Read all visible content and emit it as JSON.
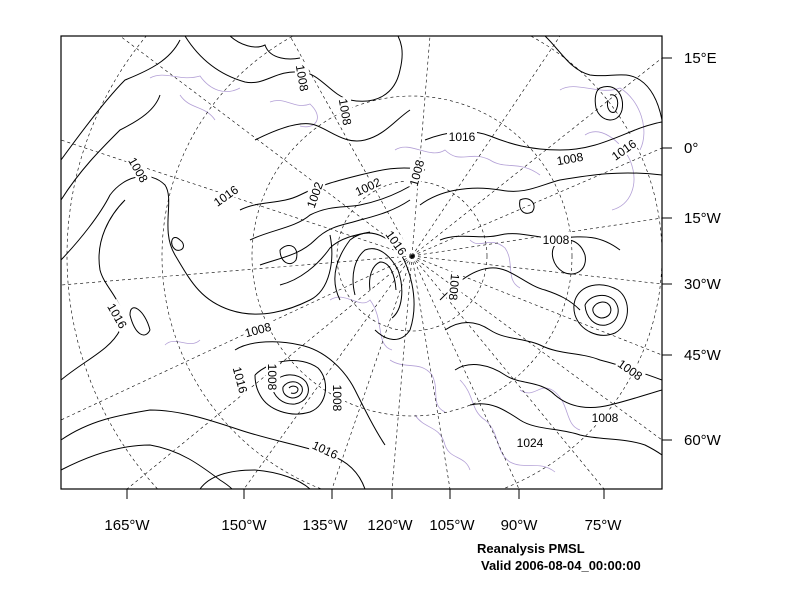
{
  "map": {
    "bottom_axis_labels": [
      "165°W",
      "150°W",
      "135°W",
      "120°W",
      "105°W",
      "90°W",
      "75°W"
    ],
    "right_axis_labels": [
      "15°E",
      "0°",
      "15°W",
      "30°W",
      "45°W",
      "60°W"
    ],
    "contour_labels": [
      "1008",
      "1008",
      "1016",
      "1008",
      "1016",
      "1008",
      "1016",
      "1002",
      "1002",
      "1008",
      "1016",
      "1008",
      "1008",
      "1016",
      "1008",
      "1008",
      "1016",
      "1008",
      "1008",
      "1016",
      "1024",
      "1008",
      "1008"
    ],
    "colors": {
      "contour": "#000000",
      "coastline": "#b3a0d6",
      "graticule": "#000000"
    }
  },
  "caption": {
    "line1": "Reanalysis PMSL",
    "line2": "Valid 2006-08-04_00:00:00"
  }
}
